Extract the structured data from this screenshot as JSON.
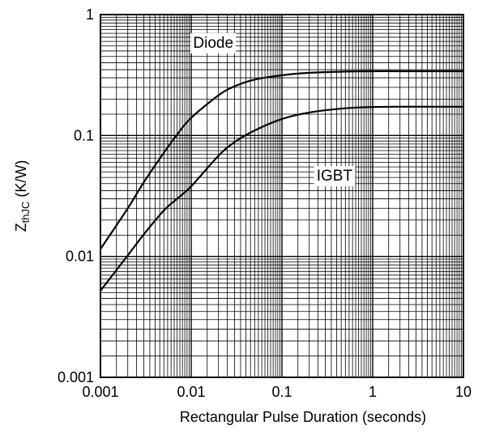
{
  "chart_data": {
    "type": "line",
    "xscale": "log",
    "yscale": "log",
    "xlim": [
      0.001,
      10
    ],
    "ylim": [
      0.001,
      1
    ],
    "xlabel": "Rectangular Pulse Duration (seconds)",
    "ylabel": {
      "base": "Z",
      "sub": "thJC",
      "unit": " (K/W)"
    },
    "grid": true,
    "x_ticks": [
      {
        "value": 0.001,
        "label": "0.001"
      },
      {
        "value": 0.01,
        "label": "0.01"
      },
      {
        "value": 0.1,
        "label": "0.1"
      },
      {
        "value": 1,
        "label": "1"
      },
      {
        "value": 10,
        "label": "10"
      }
    ],
    "y_ticks": [
      {
        "value": 0.001,
        "label": "0.001"
      },
      {
        "value": 0.01,
        "label": "0.01"
      },
      {
        "value": 0.1,
        "label": "0.1"
      },
      {
        "value": 1,
        "label": "1"
      }
    ],
    "series": [
      {
        "name": "Diode",
        "label_at": {
          "x": 0.0175,
          "y": 0.58
        },
        "points": [
          [
            0.001,
            0.0115
          ],
          [
            0.002,
            0.025
          ],
          [
            0.003,
            0.041
          ],
          [
            0.005,
            0.072
          ],
          [
            0.007,
            0.102
          ],
          [
            0.01,
            0.14
          ],
          [
            0.02,
            0.215
          ],
          [
            0.03,
            0.255
          ],
          [
            0.05,
            0.29
          ],
          [
            0.1,
            0.315
          ],
          [
            0.2,
            0.33
          ],
          [
            0.5,
            0.338
          ],
          [
            1,
            0.34
          ],
          [
            2,
            0.34
          ],
          [
            5,
            0.34
          ],
          [
            10,
            0.34
          ]
        ]
      },
      {
        "name": "IGBT",
        "label_at": {
          "x": 0.38,
          "y": 0.046
        },
        "points": [
          [
            0.001,
            0.0052
          ],
          [
            0.002,
            0.0102
          ],
          [
            0.003,
            0.0152
          ],
          [
            0.005,
            0.024
          ],
          [
            0.007,
            0.03
          ],
          [
            0.01,
            0.038
          ],
          [
            0.02,
            0.068
          ],
          [
            0.03,
            0.088
          ],
          [
            0.05,
            0.11
          ],
          [
            0.1,
            0.137
          ],
          [
            0.2,
            0.155
          ],
          [
            0.5,
            0.168
          ],
          [
            1,
            0.172
          ],
          [
            2,
            0.173
          ],
          [
            5,
            0.173
          ],
          [
            10,
            0.173
          ]
        ]
      }
    ]
  }
}
